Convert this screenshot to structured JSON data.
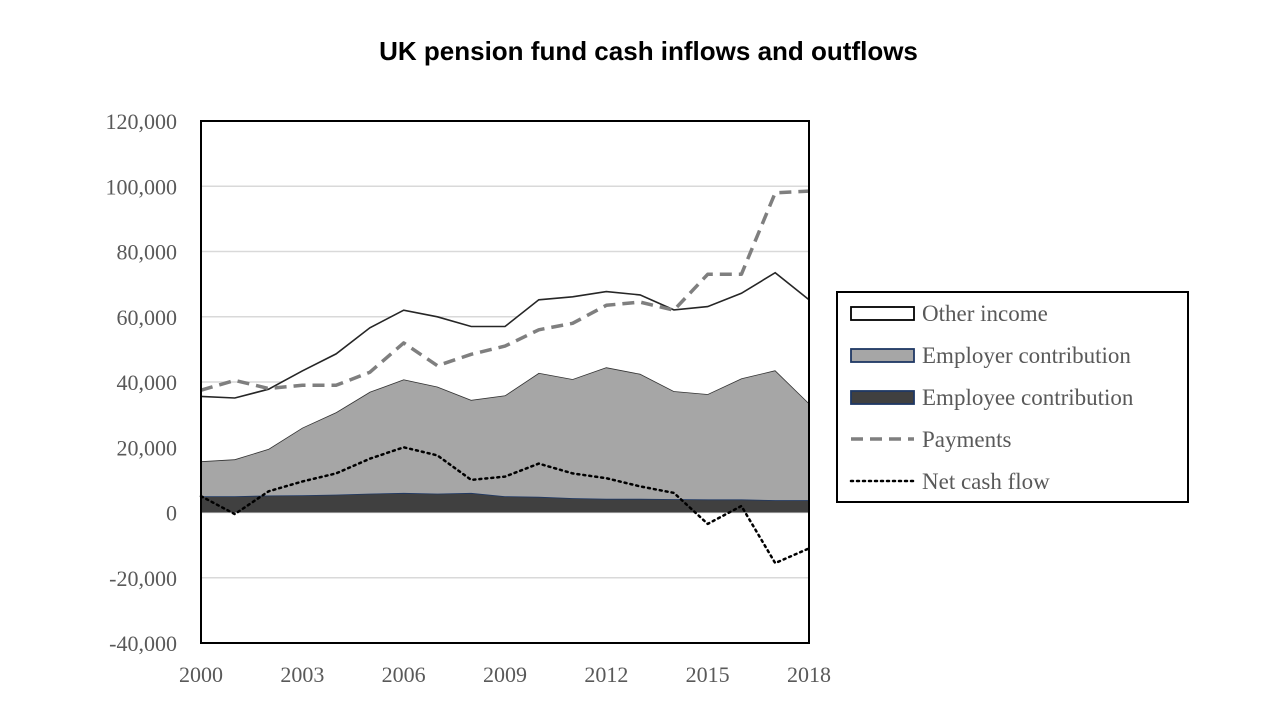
{
  "chart_data": {
    "type": "area",
    "title": "UK pension fund cash inflows and outflows",
    "xlabel": "",
    "ylabel": "",
    "x": [
      2000,
      2001,
      2002,
      2003,
      2004,
      2005,
      2006,
      2007,
      2008,
      2009,
      2010,
      2011,
      2012,
      2013,
      2014,
      2015,
      2016,
      2017,
      2018
    ],
    "xlim": [
      2000,
      2018
    ],
    "ylim": [
      -40000,
      120000
    ],
    "x_ticks": [
      2000,
      2003,
      2006,
      2009,
      2012,
      2015,
      2018
    ],
    "y_ticks": [
      -40000,
      -20000,
      0,
      20000,
      40000,
      60000,
      80000,
      100000,
      120000
    ],
    "x_tick_labels": [
      "2000",
      "2003",
      "2006",
      "2009",
      "2012",
      "2015",
      "2018"
    ],
    "y_tick_labels": [
      "-40,000",
      "-20,000",
      "0",
      "20,000",
      "40,000",
      "60,000",
      "80,000",
      "100,000",
      "120,000"
    ],
    "grid": "horizontal",
    "legend_position": "right",
    "stacked": true,
    "series": [
      {
        "name": "Employee contribution",
        "kind": "area",
        "color": "#404040",
        "values": [
          5000,
          5000,
          5200,
          5300,
          5500,
          5800,
          6000,
          5800,
          6000,
          5000,
          4800,
          4400,
          4200,
          4200,
          4100,
          4000,
          4000,
          3800,
          3800
        ]
      },
      {
        "name": "Employer contribution",
        "kind": "area",
        "color": "#a6a6a6",
        "values": [
          10700,
          11300,
          14300,
          20700,
          25200,
          31200,
          34800,
          32800,
          28500,
          30900,
          38000,
          36500,
          40300,
          38300,
          33100,
          32300,
          37100,
          39800,
          29700
        ]
      },
      {
        "name": "Other income",
        "kind": "area",
        "color": "#ffffff",
        "values": [
          19900,
          18800,
          18300,
          17400,
          17900,
          19600,
          21200,
          21400,
          22500,
          21100,
          22400,
          25200,
          23200,
          24200,
          24900,
          26800,
          26100,
          29900,
          31700
        ]
      },
      {
        "name": "Payments",
        "kind": "line",
        "style": "dashed",
        "color": "#7f7f7f",
        "values": [
          37500,
          40500,
          38000,
          39000,
          39000,
          43000,
          52000,
          45000,
          48500,
          51000,
          56000,
          58000,
          63500,
          64500,
          62000,
          73000,
          73000,
          98000,
          98500
        ]
      },
      {
        "name": "Net cash flow",
        "kind": "line",
        "style": "dotted",
        "color": "#000000",
        "values": [
          5000,
          -500,
          6500,
          9500,
          12000,
          16500,
          20000,
          17500,
          10000,
          11000,
          15000,
          12000,
          10500,
          8000,
          6000,
          -3500,
          2000,
          -15500,
          -11000
        ]
      }
    ]
  }
}
